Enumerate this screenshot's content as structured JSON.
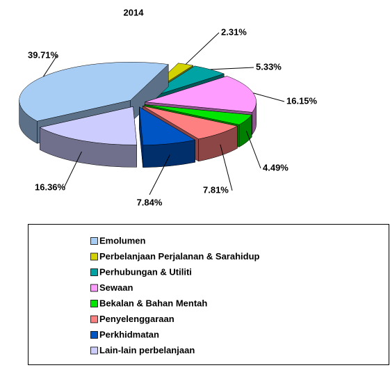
{
  "chart_data": {
    "type": "pie",
    "title": "2014",
    "categories": [
      "Emolumen",
      "Perbelanjaan Perjalanan & Sarahidup",
      "Perhubungan & Utiliti",
      "Sewaan",
      "Bekalan & Bahan Mentah",
      "Penyelenggaraan",
      "Perkhidmatan",
      "Lain-lain perbelanjaan"
    ],
    "values": [
      39.71,
      2.31,
      5.33,
      16.15,
      4.49,
      7.81,
      7.84,
      16.36
    ],
    "value_labels": [
      "39.71%",
      "2.31%",
      "5.33%",
      "16.15%",
      "4.49%",
      "7.81%",
      "7.84%",
      "16.36%"
    ],
    "colors": [
      "#a8cdf5",
      "#d2d200",
      "#00a3a3",
      "#ff9cff",
      "#00e600",
      "#ff8080",
      "#0055c4",
      "#ccccff"
    ],
    "legend": "bottom"
  }
}
